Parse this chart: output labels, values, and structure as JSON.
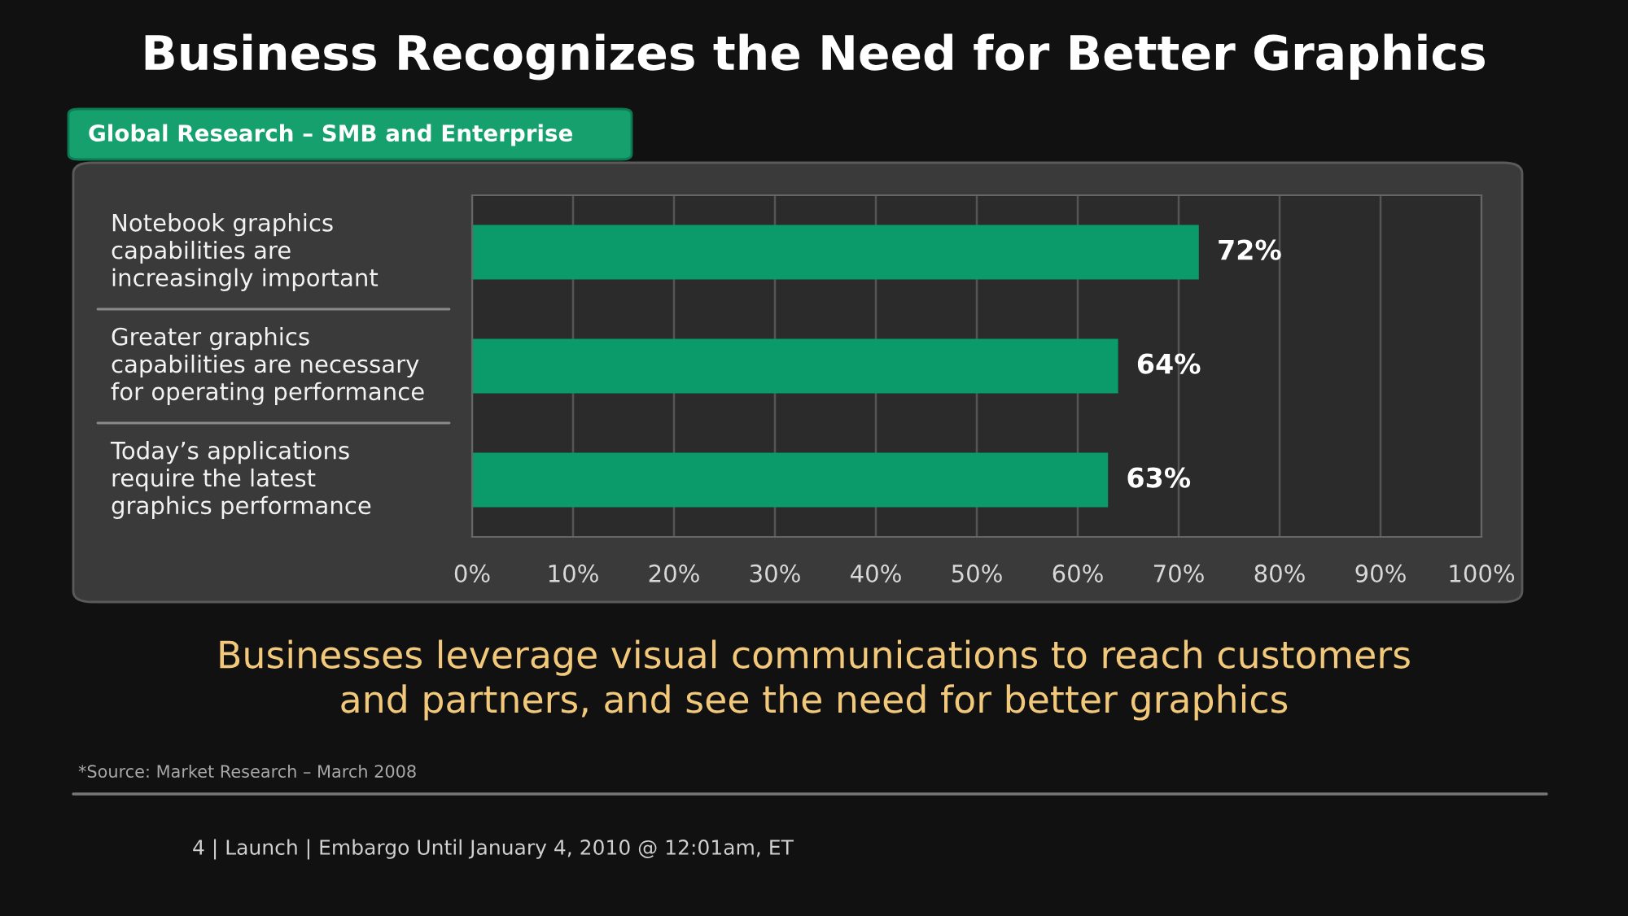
{
  "chart_data": {
    "type": "bar",
    "orientation": "horizontal",
    "title": "Business Recognizes the Need for Better Graphics",
    "subtitle": "Global Research – SMB and Enterprise",
    "categories": [
      "Notebook graphics\ncapabilities are\nincreasingly important",
      "Greater graphics\ncapabilities are necessary\nfor operating performance",
      "Today’s applications\nrequire the latest\ngraphics performance"
    ],
    "values": [
      72,
      64,
      63
    ],
    "value_labels": [
      "72%",
      "64%",
      "63%"
    ],
    "color": "#0b9a69",
    "xlim": [
      0,
      100
    ],
    "xticks": [
      {
        "value": 0,
        "label": "0%"
      },
      {
        "value": 10,
        "label": "10%"
      },
      {
        "value": 20,
        "label": "20%"
      },
      {
        "value": 30,
        "label": "30%"
      },
      {
        "value": 40,
        "label": "40%"
      },
      {
        "value": 50,
        "label": "50%"
      },
      {
        "value": 60,
        "label": "60%"
      },
      {
        "value": 70,
        "label": "70%"
      },
      {
        "value": 80,
        "label": "80%"
      },
      {
        "value": 90,
        "label": "90%"
      },
      {
        "value": 100,
        "label": "100%"
      }
    ],
    "grid": "x",
    "annotations": [
      "Businesses leverage visual communications to reach customers\nand partners, and see the need for better graphics",
      "*Source: Market Research – March 2008",
      "4 | Launch | Embargo Until January 4, 2010 @ 12:01am, ET"
    ]
  }
}
